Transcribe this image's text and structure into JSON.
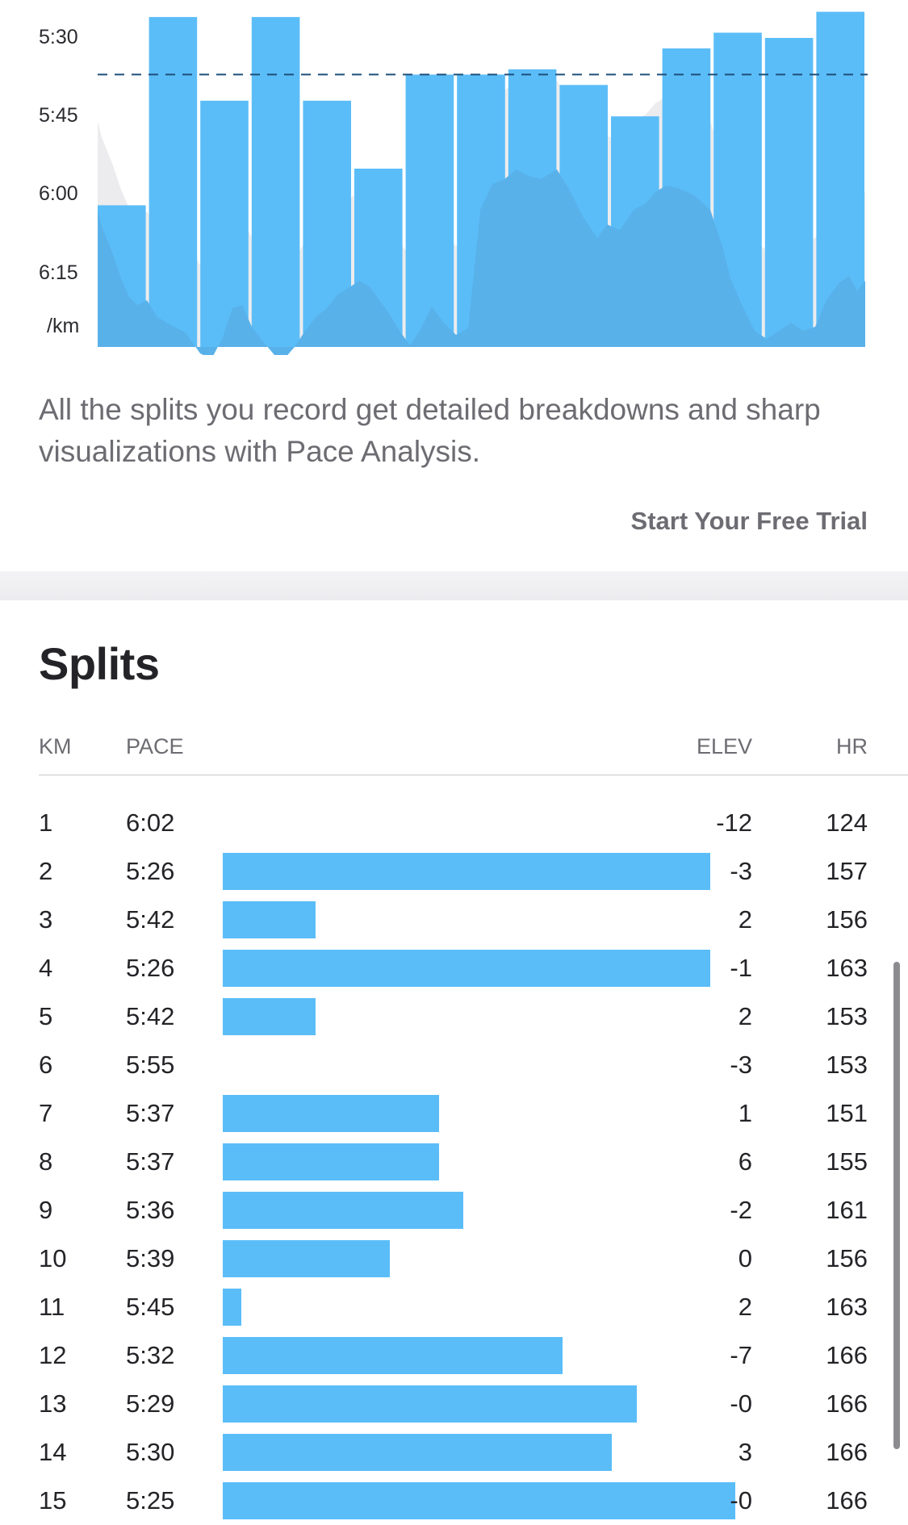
{
  "chart_data": {
    "type": "bar",
    "y_tick_labels": [
      "5:30",
      "5:45",
      "6:00",
      "6:15"
    ],
    "y_unit": "/km",
    "y_tick_seconds": [
      330,
      345,
      360,
      375
    ],
    "categories": [
      1,
      2,
      3,
      4,
      5,
      6,
      7,
      8,
      9,
      10,
      11,
      12,
      13,
      14,
      15
    ],
    "series": [
      {
        "values": [
          362,
          326,
          342,
          326,
          342,
          355,
          337,
          337,
          336,
          339,
          345,
          332,
          329,
          330,
          325
        ]
      }
    ],
    "average_line_seconds": 337,
    "ylim_seconds": [
      328,
      390
    ],
    "y_reversed": true,
    "grid": false,
    "background_area": "elevation / grade profile (unlabelled)"
  },
  "promo": {
    "text": "All the splits you record get detailed breakdowns and sharp visualizations with Pace Analysis.",
    "cta_label": "Start Your Free Trial"
  },
  "splits": {
    "title": "Splits",
    "headers": {
      "km": "KM",
      "pace": "PACE",
      "elev": "ELEV",
      "hr": "HR"
    },
    "rows": [
      {
        "km": "1",
        "pace": "6:02",
        "elev": "-12",
        "hr": "124",
        "pace_seconds": 362
      },
      {
        "km": "2",
        "pace": "5:26",
        "elev": "-3",
        "hr": "157",
        "pace_seconds": 326
      },
      {
        "km": "3",
        "pace": "5:42",
        "elev": "2",
        "hr": "156",
        "pace_seconds": 342
      },
      {
        "km": "4",
        "pace": "5:26",
        "elev": "-1",
        "hr": "163",
        "pace_seconds": 326
      },
      {
        "km": "5",
        "pace": "5:42",
        "elev": "2",
        "hr": "153",
        "pace_seconds": 342
      },
      {
        "km": "6",
        "pace": "5:55",
        "elev": "-3",
        "hr": "153",
        "pace_seconds": 355
      },
      {
        "km": "7",
        "pace": "5:37",
        "elev": "1",
        "hr": "151",
        "pace_seconds": 337
      },
      {
        "km": "8",
        "pace": "5:37",
        "elev": "6",
        "hr": "155",
        "pace_seconds": 337
      },
      {
        "km": "9",
        "pace": "5:36",
        "elev": "-2",
        "hr": "161",
        "pace_seconds": 336
      },
      {
        "km": "10",
        "pace": "5:39",
        "elev": "0",
        "hr": "156",
        "pace_seconds": 339
      },
      {
        "km": "11",
        "pace": "5:45",
        "elev": "2",
        "hr": "163",
        "pace_seconds": 345
      },
      {
        "km": "12",
        "pace": "5:32",
        "elev": "-7",
        "hr": "166",
        "pace_seconds": 332
      },
      {
        "km": "13",
        "pace": "5:29",
        "elev": "-0",
        "hr": "166",
        "pace_seconds": 329
      },
      {
        "km": "14",
        "pace": "5:30",
        "elev": "3",
        "hr": "166",
        "pace_seconds": 330
      },
      {
        "km": "15",
        "pace": "5:25",
        "elev": "-0",
        "hr": "166",
        "pace_seconds": 325
      }
    ]
  },
  "colors": {
    "bar": "#5bbdf8",
    "bar_overlap": "#59b1ea",
    "elevation_fill": "#ececee",
    "average_line": "#1e4f7a",
    "text_primary": "#242428",
    "text_secondary": "#6c6c72"
  }
}
